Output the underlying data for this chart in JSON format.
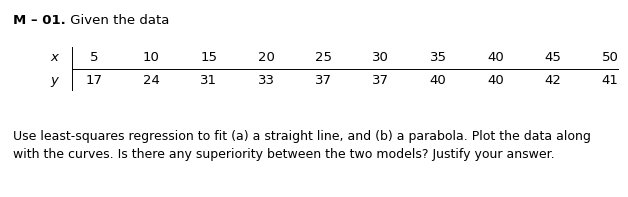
{
  "title_bold": "M – 01.",
  "title_normal": " Given the data",
  "x_label": "x",
  "y_label": "y",
  "x_values": [
    5,
    10,
    15,
    20,
    25,
    30,
    35,
    40,
    45,
    50
  ],
  "y_values": [
    17,
    24,
    31,
    33,
    37,
    37,
    40,
    40,
    42,
    41
  ],
  "body_text_line1": "Use least-squares regression to fit (a) a straight line, and (b) a parabola. Plot the data along",
  "body_text_line2": "with the curves. Is there any superiority between the two models? Justify your answer.",
  "background_color": "#ffffff",
  "text_color": "#000000",
  "table_line_color": "#000000",
  "title_fontsize": 9.5,
  "table_fontsize": 9.5,
  "body_fontsize": 9.0,
  "fig_width": 6.28,
  "fig_height": 1.97,
  "dpi": 100
}
